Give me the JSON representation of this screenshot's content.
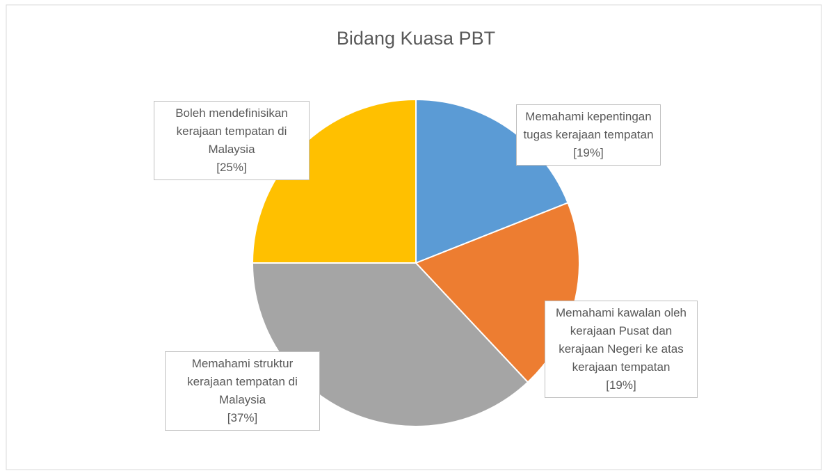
{
  "chart_data": {
    "type": "pie",
    "title": "Bidang Kuasa PBT",
    "categories": [
      "Memahami kepentingan tugas kerajaan tempatan",
      "Memahami kawalan oleh kerajaan Pusat dan kerajaan Negeri ke atas kerajaan tempatan",
      "Memahami struktur kerajaan tempatan di Malaysia",
      "Boleh mendefinisikan kerajaan tempatan di Malaysia"
    ],
    "values": [
      19,
      19,
      37,
      25
    ],
    "value_labels": [
      "[19%]",
      "[19%]",
      "[37%]",
      "[25%]"
    ],
    "colors": [
      "#5b9bd5",
      "#ed7d31",
      "#a5a5a5",
      "#ffc000"
    ]
  }
}
